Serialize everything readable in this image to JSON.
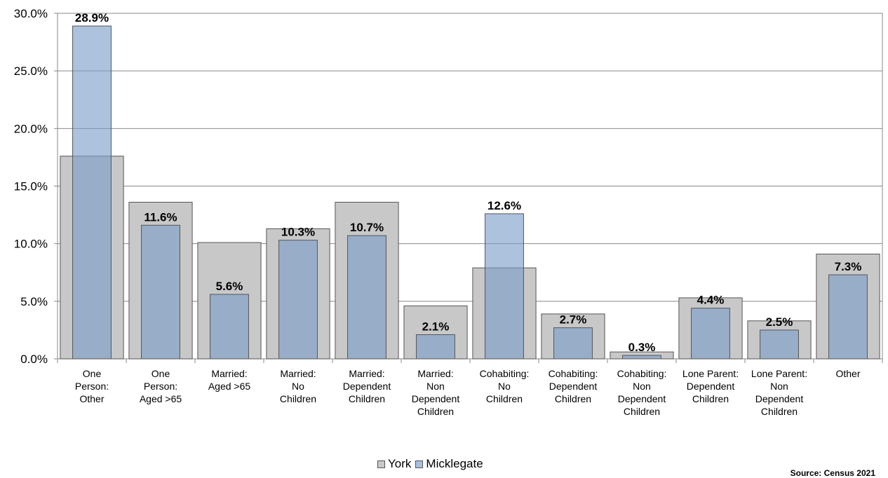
{
  "chart_data": {
    "type": "bar",
    "title": "",
    "xlabel": "",
    "ylabel": "",
    "ylim": [
      0,
      30
    ],
    "yticks": [
      "0.0%",
      "5.0%",
      "10.0%",
      "15.0%",
      "20.0%",
      "25.0%",
      "30.0%"
    ],
    "grid": true,
    "legend_position": "bottom",
    "categories": [
      [
        "One",
        "Person:",
        "Other"
      ],
      [
        "One",
        "Person:",
        "Aged >65"
      ],
      [
        "Married:",
        "Aged >65"
      ],
      [
        "Married:",
        "No",
        "Children"
      ],
      [
        "Married:",
        "Dependent",
        "Children"
      ],
      [
        "Married:",
        "Non",
        "Dependent",
        "Children"
      ],
      [
        "Cohabiting:",
        "No",
        "Children"
      ],
      [
        "Cohabiting:",
        "Dependent",
        "Children"
      ],
      [
        "Cohabiting:",
        "Non",
        "Dependent",
        "Children"
      ],
      [
        "Lone Parent:",
        "Dependent",
        "Children"
      ],
      [
        "Lone Parent:",
        "Non",
        "Dependent",
        "Children"
      ],
      [
        "Other"
      ]
    ],
    "series": [
      {
        "name": "York",
        "color": "#c8c8c8",
        "values": [
          17.6,
          13.6,
          10.1,
          11.3,
          13.6,
          4.6,
          7.9,
          3.9,
          0.6,
          5.3,
          3.3,
          9.1
        ]
      },
      {
        "name": "Micklegate",
        "color": "#7b9cc8",
        "values": [
          28.9,
          11.6,
          5.6,
          10.3,
          10.7,
          2.1,
          12.6,
          2.7,
          0.3,
          4.4,
          2.5,
          7.3
        ],
        "labels": [
          "28.9%",
          "11.6%",
          "5.6%",
          "10.3%",
          "10.7%",
          "2.1%",
          "12.6%",
          "2.7%",
          "0.3%",
          "4.4%",
          "2.5%",
          "7.3%"
        ]
      }
    ]
  },
  "legend": {
    "york": "York",
    "micklegate": "Micklegate"
  },
  "source": "Source: Census 2021"
}
